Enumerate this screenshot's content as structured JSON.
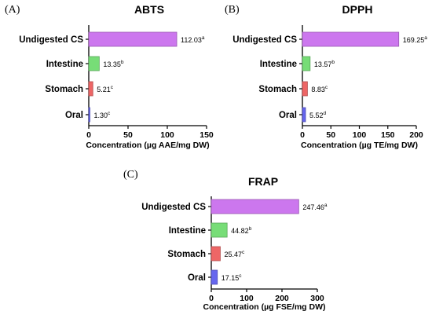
{
  "panels": {
    "a": {
      "label": "(A)"
    },
    "b": {
      "label": "(B)"
    },
    "c": {
      "label": "(C)"
    }
  },
  "chart_data": [
    {
      "type": "bar",
      "orientation": "horizontal",
      "title": "ABTS",
      "xlabel": "Concentration (µg AAE/mg DW)",
      "categories": [
        "Undigested CS",
        "Intestine",
        "Stomach",
        "Oral"
      ],
      "values": [
        112.03,
        13.35,
        5.21,
        1.3
      ],
      "labels": [
        "112.03",
        "13.35",
        "5.21",
        "1.30"
      ],
      "letters": [
        "a",
        "b",
        "c",
        "c"
      ],
      "colors": [
        "#cc77ee",
        "#77dd77",
        "#ee6666",
        "#6666ee"
      ],
      "ticks": [
        0,
        50,
        100,
        150
      ],
      "xlim": [
        0,
        150
      ]
    },
    {
      "type": "bar",
      "orientation": "horizontal",
      "title": "DPPH",
      "xlabel": "Concentration (µg TE/mg DW)",
      "categories": [
        "Undigested CS",
        "Intestine",
        "Stomach",
        "Oral"
      ],
      "values": [
        169.25,
        13.57,
        8.83,
        5.52
      ],
      "labels": [
        "169.25",
        "13.57",
        "8.83",
        "5.52"
      ],
      "letters": [
        "a",
        "b",
        "c",
        "d"
      ],
      "colors": [
        "#cc77ee",
        "#77dd77",
        "#ee6666",
        "#6666ee"
      ],
      "ticks": [
        0,
        50,
        100,
        150,
        200
      ],
      "xlim": [
        0,
        200
      ]
    },
    {
      "type": "bar",
      "orientation": "horizontal",
      "title": "FRAP",
      "xlabel": "Concentration (µg FSE/mg DW)",
      "categories": [
        "Undigested CS",
        "Intestine",
        "Stomach",
        "Oral"
      ],
      "values": [
        247.46,
        44.82,
        25.47,
        17.15
      ],
      "labels": [
        "247.46",
        "44.82",
        "25.47",
        "17.15"
      ],
      "letters": [
        "a",
        "b",
        "c",
        "c"
      ],
      "colors": [
        "#cc77ee",
        "#77dd77",
        "#ee6666",
        "#6666ee"
      ],
      "ticks": [
        0,
        100,
        200,
        300
      ],
      "xlim": [
        0,
        300
      ]
    }
  ]
}
